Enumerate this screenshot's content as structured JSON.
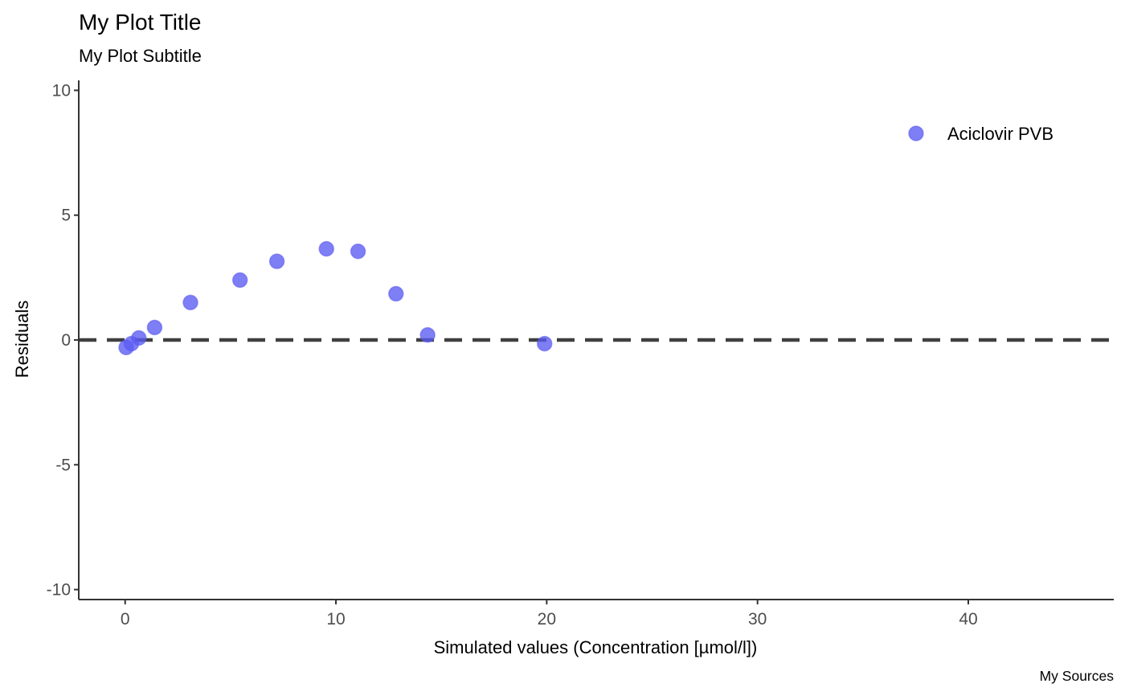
{
  "chart_data": {
    "type": "scatter",
    "title": "My Plot Title",
    "subtitle": "My Plot Subtitle",
    "caption": "My Sources",
    "xlabel": "Simulated values (Concentration [µmol/l])",
    "ylabel": "Residuals",
    "xlim": [
      -2.2,
      46.9
    ],
    "ylim": [
      -10.4,
      10.4
    ],
    "xticks": [
      0,
      10,
      20,
      30,
      40
    ],
    "xtick_labels": [
      "0",
      "10",
      "20",
      "30",
      "40"
    ],
    "yticks": [
      -10,
      -5,
      0,
      5,
      10
    ],
    "ytick_labels": [
      "-10",
      "-5",
      "0",
      "5",
      "10"
    ],
    "grid": false,
    "legend_position": "top-right",
    "reference_line": {
      "y": 0,
      "style": "dashed",
      "color": "#404040"
    },
    "series": [
      {
        "name": "Aciclovir PVB",
        "color": "#5a5af2",
        "points": [
          {
            "x": 0.05,
            "y": -0.3
          },
          {
            "x": 0.3,
            "y": -0.15
          },
          {
            "x": 0.65,
            "y": 0.08
          },
          {
            "x": 1.4,
            "y": 0.5
          },
          {
            "x": 3.1,
            "y": 1.5
          },
          {
            "x": 5.45,
            "y": 2.4
          },
          {
            "x": 7.2,
            "y": 3.15
          },
          {
            "x": 9.55,
            "y": 3.65
          },
          {
            "x": 11.05,
            "y": 3.55
          },
          {
            "x": 12.85,
            "y": 1.85
          },
          {
            "x": 14.35,
            "y": 0.2
          },
          {
            "x": 19.9,
            "y": -0.15
          }
        ]
      }
    ]
  }
}
